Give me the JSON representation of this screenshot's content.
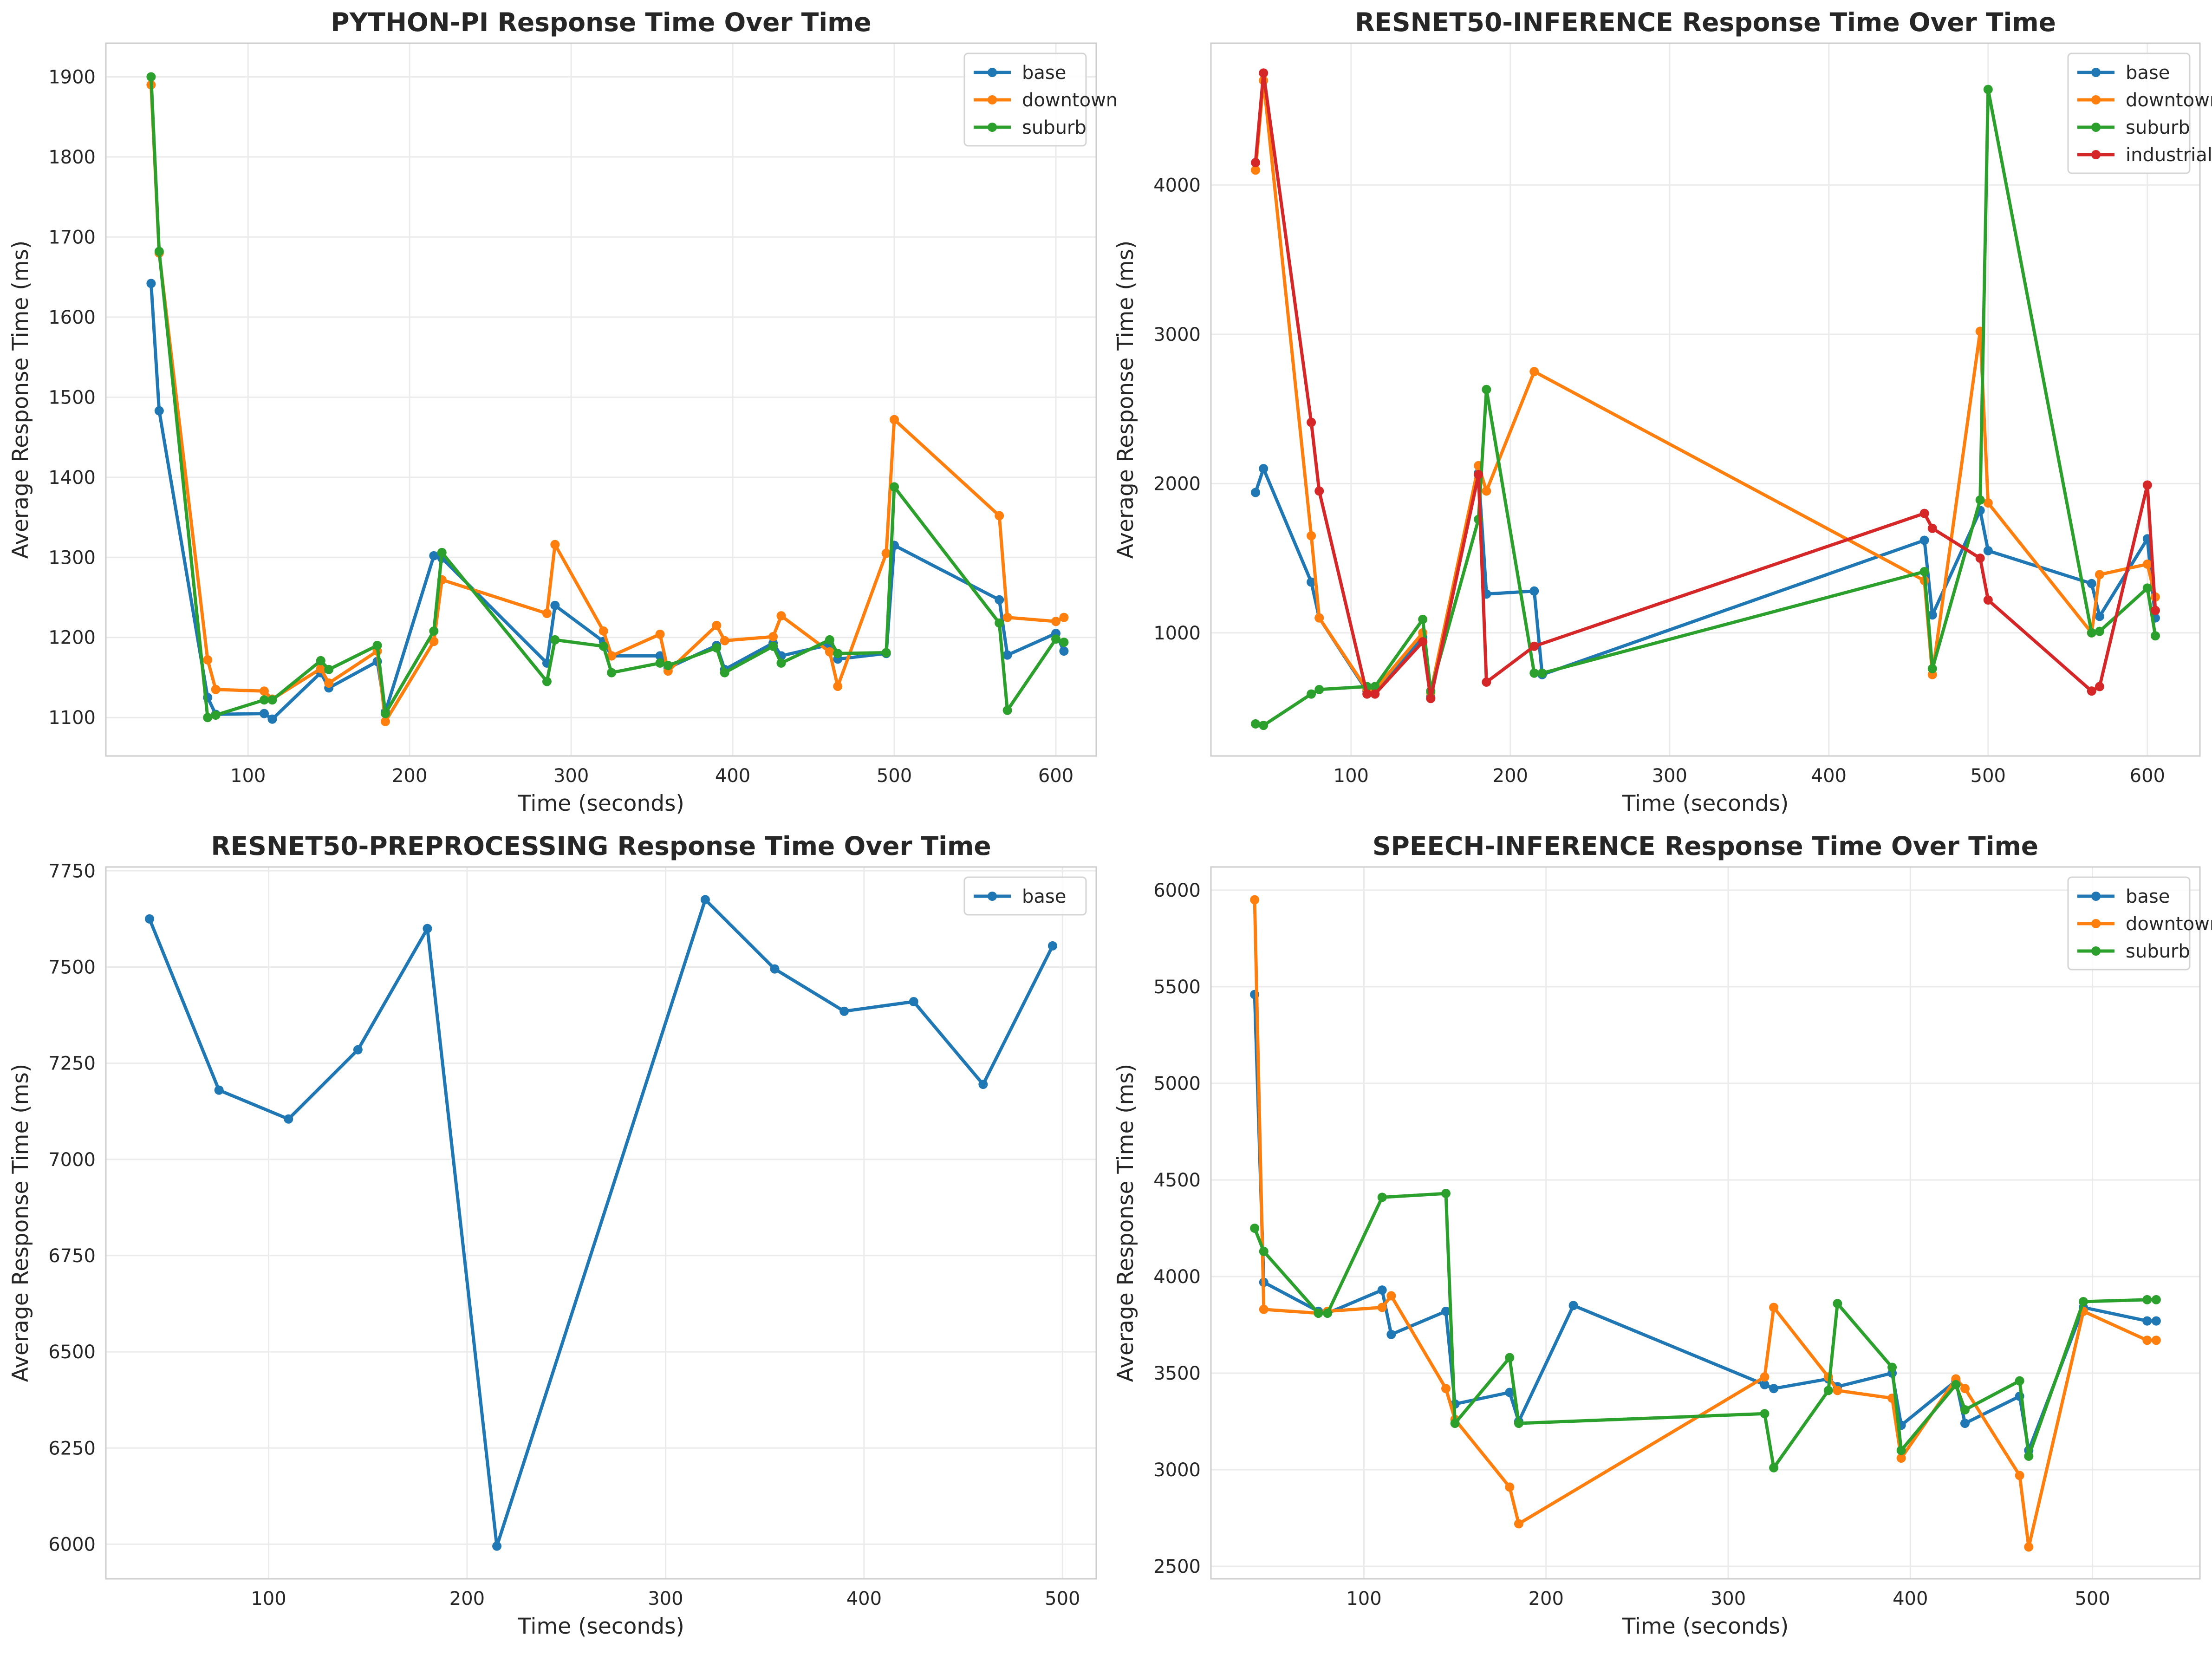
{
  "chart_data": [
    {
      "type": "line",
      "title": "PYTHON-PI Response Time Over Time",
      "xlabel": "Time (seconds)",
      "ylabel": "Average Response Time (ms)",
      "xlim": [
        12,
        625
      ],
      "ylim": [
        1052,
        1942
      ],
      "xticks": [
        100,
        200,
        300,
        400,
        500,
        600
      ],
      "yticks": [
        1100,
        1200,
        1300,
        1400,
        1500,
        1600,
        1700,
        1800,
        1900
      ],
      "grid": true,
      "legend": "upper-right",
      "series": [
        {
          "name": "base",
          "color": "#1f77b4",
          "x": [
            40,
            45,
            75,
            80,
            110,
            115,
            145,
            150,
            180,
            185,
            215,
            220,
            285,
            290,
            320,
            325,
            355,
            360,
            390,
            395,
            425,
            430,
            460,
            465,
            495,
            500,
            565,
            570,
            600,
            605
          ],
          "y": [
            1642,
            1483,
            1125,
            1104,
            1105,
            1098,
            1156,
            1137,
            1170,
            1107,
            1302,
            1299,
            1168,
            1240,
            1195,
            1177,
            1177,
            1162,
            1190,
            1160,
            1193,
            1177,
            1191,
            1173,
            1180,
            1315,
            1247,
            1178,
            1205,
            1183
          ]
        },
        {
          "name": "downtown",
          "color": "#ff7f0e",
          "x": [
            40,
            45,
            75,
            80,
            110,
            115,
            145,
            150,
            180,
            185,
            215,
            220,
            285,
            290,
            320,
            325,
            355,
            360,
            390,
            395,
            425,
            430,
            460,
            465,
            495,
            500,
            565,
            570,
            600,
            605
          ],
          "y": [
            1890,
            1680,
            1172,
            1135,
            1133,
            1123,
            1161,
            1143,
            1183,
            1095,
            1195,
            1272,
            1230,
            1316,
            1208,
            1177,
            1204,
            1158,
            1215,
            1196,
            1201,
            1227,
            1182,
            1139,
            1305,
            1472,
            1352,
            1225,
            1220,
            1225
          ]
        },
        {
          "name": "suburb",
          "color": "#2ca02c",
          "x": [
            40,
            45,
            75,
            80,
            110,
            115,
            145,
            150,
            180,
            185,
            215,
            220,
            285,
            290,
            320,
            325,
            355,
            360,
            390,
            395,
            425,
            430,
            460,
            465,
            495,
            500,
            565,
            570,
            600,
            605
          ],
          "y": [
            1900,
            1682,
            1100,
            1103,
            1122,
            1122,
            1171,
            1160,
            1190,
            1105,
            1208,
            1306,
            1145,
            1197,
            1189,
            1156,
            1168,
            1165,
            1187,
            1156,
            1189,
            1168,
            1197,
            1180,
            1181,
            1388,
            1218,
            1109,
            1198,
            1194
          ]
        }
      ]
    },
    {
      "type": "line",
      "title": "RESNET50-INFERENCE Response Time Over Time",
      "xlabel": "Time (seconds)",
      "ylabel": "Average Response Time (ms)",
      "xlim": [
        12,
        633
      ],
      "ylim": [
        175,
        4950
      ],
      "xticks": [
        100,
        200,
        300,
        400,
        500,
        600
      ],
      "yticks": [
        1000,
        2000,
        3000,
        4000
      ],
      "grid": true,
      "legend": "upper-right",
      "series": [
        {
          "name": "base",
          "color": "#1f77b4",
          "x": [
            40,
            45,
            75,
            80,
            110,
            115,
            145,
            150,
            180,
            185,
            215,
            220,
            460,
            465,
            495,
            500,
            565,
            570,
            600,
            605
          ],
          "y": [
            1940,
            2100,
            1340,
            1100,
            610,
            620,
            970,
            570,
            2070,
            1260,
            1280,
            720,
            1620,
            1120,
            1820,
            1550,
            1330,
            1110,
            1630,
            1100
          ]
        },
        {
          "name": "downtown",
          "color": "#ff7f0e",
          "x": [
            40,
            45,
            75,
            80,
            110,
            115,
            145,
            150,
            180,
            185,
            215,
            460,
            465,
            495,
            500,
            565,
            570,
            600,
            605
          ],
          "y": [
            4100,
            4700,
            1650,
            1100,
            620,
            620,
            1000,
            600,
            2120,
            1950,
            2750,
            1350,
            720,
            3020,
            1870,
            1000,
            1390,
            1460,
            1240
          ]
        },
        {
          "name": "suburb",
          "color": "#2ca02c",
          "x": [
            40,
            45,
            75,
            80,
            110,
            115,
            145,
            150,
            180,
            185,
            215,
            220,
            460,
            465,
            495,
            500,
            565,
            570,
            600,
            605
          ],
          "y": [
            390,
            380,
            590,
            620,
            640,
            640,
            1090,
            610,
            1760,
            2630,
            730,
            730,
            1410,
            760,
            1890,
            4640,
            1000,
            1010,
            1300,
            980
          ]
        },
        {
          "name": "industrial",
          "color": "#d62728",
          "x": [
            40,
            45,
            75,
            80,
            110,
            115,
            145,
            150,
            180,
            185,
            215,
            460,
            465,
            495,
            500,
            565,
            570,
            600,
            605
          ],
          "y": [
            4150,
            4750,
            2410,
            1950,
            590,
            590,
            940,
            560,
            2060,
            670,
            910,
            1800,
            1700,
            1500,
            1220,
            610,
            640,
            1990,
            1150
          ]
        }
      ]
    },
    {
      "type": "line",
      "title": "RESNET50-PREPROCESSING Response Time Over Time",
      "xlabel": "Time (seconds)",
      "ylabel": "Average Response Time (ms)",
      "xlim": [
        18,
        517
      ],
      "ylim": [
        5910,
        7760
      ],
      "xticks": [
        100,
        200,
        300,
        400,
        500
      ],
      "yticks": [
        6000,
        6250,
        6500,
        6750,
        7000,
        7250,
        7500,
        7750
      ],
      "grid": true,
      "legend": "upper-right",
      "series": [
        {
          "name": "base",
          "color": "#1f77b4",
          "x": [
            40,
            75,
            110,
            145,
            180,
            215,
            320,
            355,
            390,
            425,
            460,
            495
          ],
          "y": [
            7625,
            7180,
            7105,
            7285,
            7600,
            5995,
            7675,
            7495,
            7385,
            7410,
            7195,
            7555
          ]
        }
      ]
    },
    {
      "type": "line",
      "title": "SPEECH-INFERENCE Response Time Over Time",
      "xlabel": "Time (seconds)",
      "ylabel": "Average Response Time (ms)",
      "xlim": [
        16,
        559
      ],
      "ylim": [
        2435,
        6120
      ],
      "xticks": [
        100,
        200,
        300,
        400,
        500
      ],
      "yticks": [
        2500,
        3000,
        3500,
        4000,
        4500,
        5000,
        5500,
        6000
      ],
      "grid": true,
      "legend": "upper-right",
      "series": [
        {
          "name": "base",
          "color": "#1f77b4",
          "x": [
            40,
            45,
            75,
            80,
            110,
            115,
            145,
            150,
            180,
            185,
            215,
            320,
            325,
            355,
            360,
            390,
            395,
            425,
            430,
            460,
            465,
            495,
            530,
            535
          ],
          "y": [
            5460,
            3970,
            3820,
            3810,
            3930,
            3700,
            3820,
            3340,
            3400,
            3250,
            3850,
            3440,
            3420,
            3470,
            3430,
            3500,
            3230,
            3460,
            3240,
            3380,
            3100,
            3840,
            3770,
            3770
          ]
        },
        {
          "name": "downtown",
          "color": "#ff7f0e",
          "x": [
            40,
            45,
            75,
            80,
            110,
            115,
            145,
            150,
            180,
            185,
            320,
            325,
            355,
            360,
            390,
            395,
            425,
            430,
            460,
            465,
            495,
            530,
            535
          ],
          "y": [
            5950,
            3830,
            3810,
            3820,
            3840,
            3900,
            3420,
            3260,
            2910,
            2720,
            3480,
            3840,
            3480,
            3410,
            3370,
            3060,
            3470,
            3420,
            2970,
            2600,
            3820,
            3670,
            3670
          ]
        },
        {
          "name": "suburb",
          "color": "#2ca02c",
          "x": [
            40,
            45,
            75,
            80,
            110,
            145,
            150,
            180,
            185,
            320,
            325,
            355,
            360,
            390,
            395,
            425,
            430,
            460,
            465,
            495,
            530,
            535
          ],
          "y": [
            4250,
            4130,
            3810,
            3810,
            4410,
            4430,
            3240,
            3580,
            3240,
            3290,
            3010,
            3410,
            3860,
            3530,
            3100,
            3440,
            3310,
            3460,
            3070,
            3870,
            3880,
            3880
          ]
        }
      ]
    }
  ]
}
